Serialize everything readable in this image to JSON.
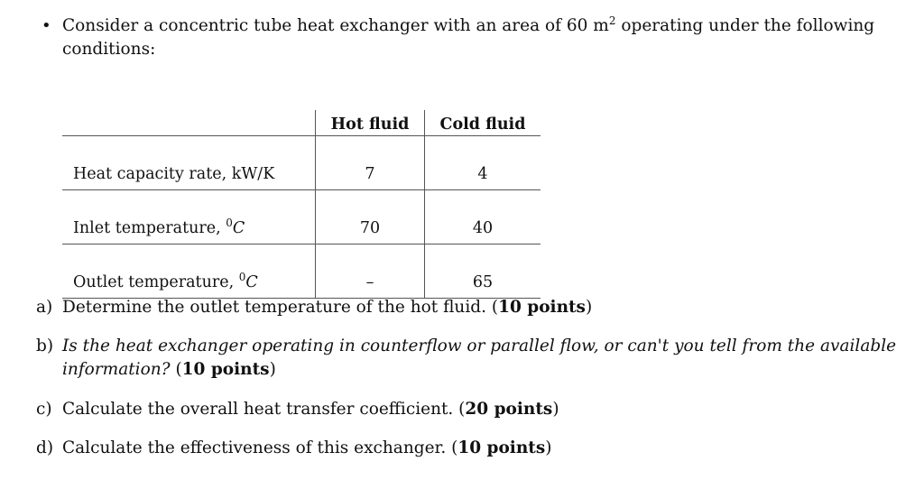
{
  "intro": {
    "bullet": "•",
    "text_before": "Consider a concentric tube heat exchanger with an area of 60 m",
    "sup": "2",
    "text_after": " operating under the following",
    "line2": "conditions:"
  },
  "table": {
    "headers": [
      "",
      "Hot fluid",
      "Cold fluid"
    ],
    "rows": [
      {
        "label": "Heat capacity rate, kW/K",
        "unit_sup": "",
        "unit": "",
        "hot": "7",
        "cold": "4"
      },
      {
        "label": "Inlet temperature, ",
        "unit_sup": "0",
        "unit": "C",
        "hot": "70",
        "cold": "40"
      },
      {
        "label": "Outlet temperature, ",
        "unit_sup": "0",
        "unit": "C",
        "hot": "–",
        "cold": "65"
      }
    ]
  },
  "questions": [
    {
      "label": "a)",
      "text": "Determine the outlet temperature of the hot fluid. (",
      "points": "10 points",
      "end": ")"
    },
    {
      "label": "b)",
      "text_italic_1": "Is the heat exchanger operating in counterflow or parallel flow, or can't you tell from the available",
      "text_italic_2": "information?",
      "text": " (",
      "points": "10 points",
      "end": ")"
    },
    {
      "label": "c)",
      "text": "Calculate the overall heat transfer coefficient. (",
      "points": "20 points",
      "end": ")"
    },
    {
      "label": "d)",
      "text": "Calculate the effectiveness of this exchanger. (",
      "points": "10 points",
      "end": ")"
    }
  ]
}
